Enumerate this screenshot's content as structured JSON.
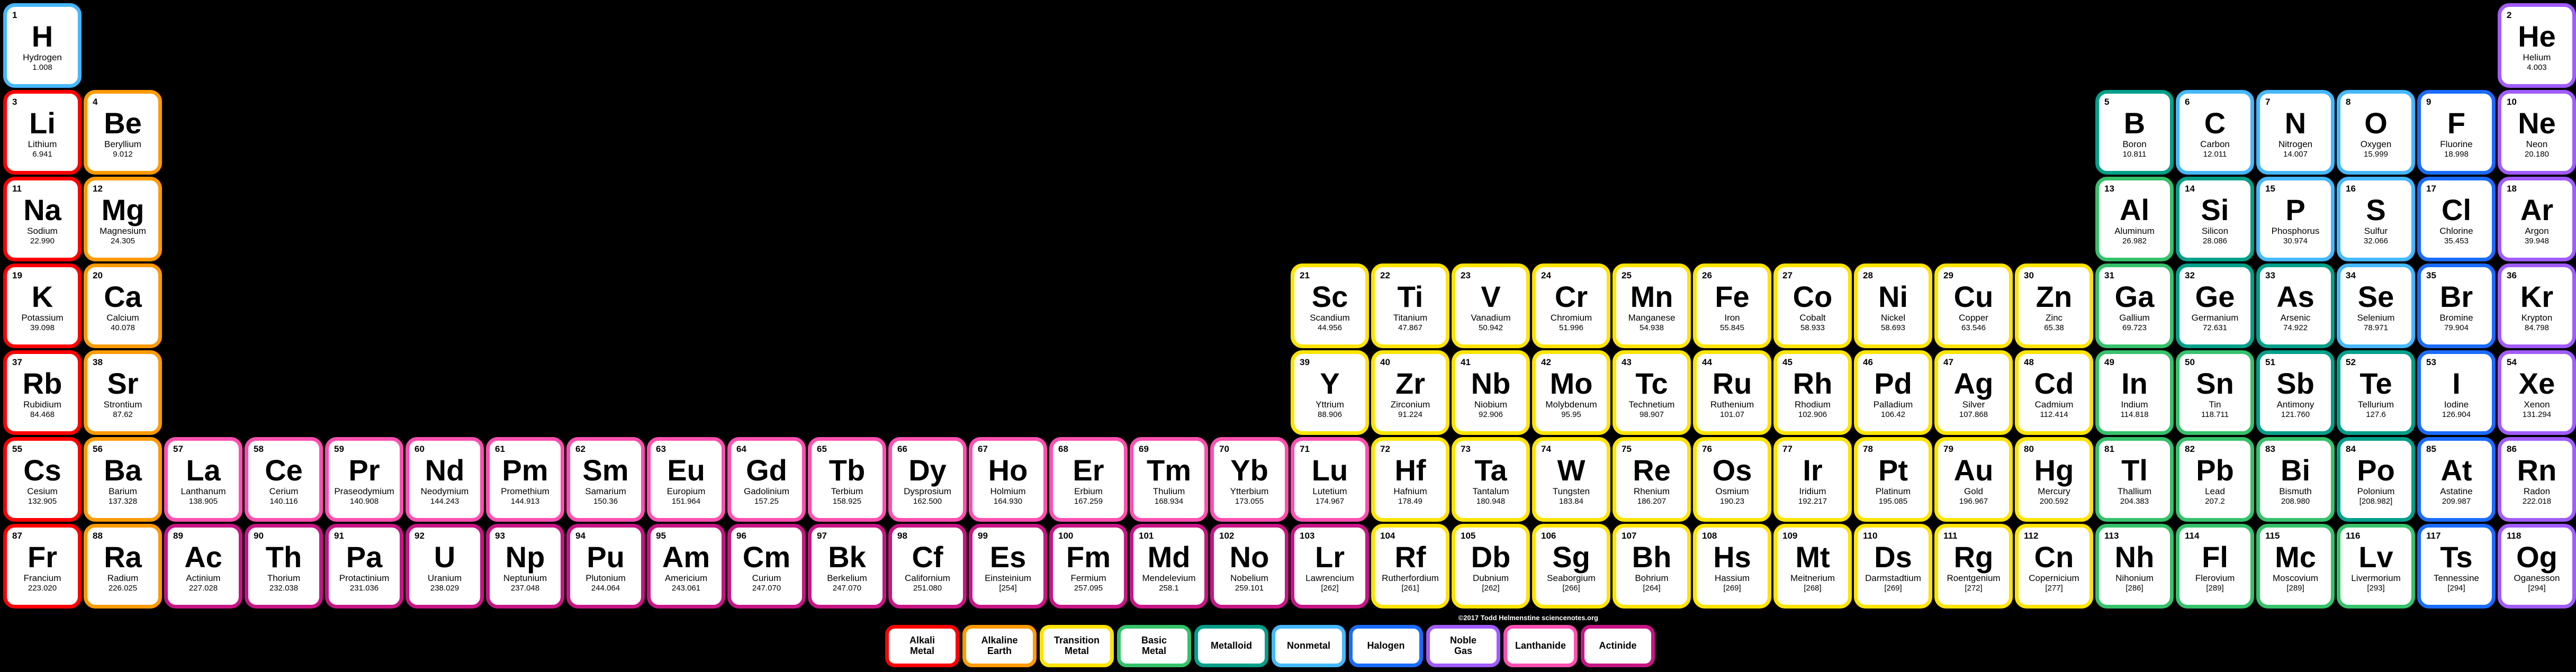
{
  "background_color": "#000000",
  "cell_bg": "#ffffff",
  "cell_text": "#000000",
  "credit": "©2017 Todd Helmenstine\nsciencenotes.org",
  "categories": {
    "alkali": {
      "label": "Alkali\nMetal",
      "color": "#ff0000"
    },
    "alkaline": {
      "label": "Alkaline\nEarth",
      "color": "#ff9a00"
    },
    "transition": {
      "label": "Transition\nMetal",
      "color": "#ffe400"
    },
    "basic": {
      "label": "Basic\nMetal",
      "color": "#35c26b"
    },
    "metalloid": {
      "label": "Metalloid",
      "color": "#00a08a"
    },
    "nonmetal": {
      "label": "Nonmetal",
      "color": "#45b8ff"
    },
    "halogen": {
      "label": "Halogen",
      "color": "#1a6bff"
    },
    "noble": {
      "label": "Noble\nGas",
      "color": "#a05cff"
    },
    "lanthanide": {
      "label": "Lanthanide",
      "color": "#ff4fb0"
    },
    "actinide": {
      "label": "Actinide",
      "color": "#c71585"
    }
  },
  "category_order": [
    "alkali",
    "alkaline",
    "transition",
    "basic",
    "metalloid",
    "nonmetal",
    "halogen",
    "noble",
    "lanthanide",
    "actinide"
  ],
  "elements": [
    {
      "n": 1,
      "s": "H",
      "nm": "Hydrogen",
      "m": "1.008",
      "c": "nonmetal",
      "r": 1,
      "col": 1
    },
    {
      "n": 2,
      "s": "He",
      "nm": "Helium",
      "m": "4.003",
      "c": "noble",
      "r": 1,
      "col": 32
    },
    {
      "n": 3,
      "s": "Li",
      "nm": "Lithium",
      "m": "6.941",
      "c": "alkali",
      "r": 2,
      "col": 1
    },
    {
      "n": 4,
      "s": "Be",
      "nm": "Beryllium",
      "m": "9.012",
      "c": "alkaline",
      "r": 2,
      "col": 2
    },
    {
      "n": 5,
      "s": "B",
      "nm": "Boron",
      "m": "10.811",
      "c": "metalloid",
      "r": 2,
      "col": 27
    },
    {
      "n": 6,
      "s": "C",
      "nm": "Carbon",
      "m": "12.011",
      "c": "nonmetal",
      "r": 2,
      "col": 28
    },
    {
      "n": 7,
      "s": "N",
      "nm": "Nitrogen",
      "m": "14.007",
      "c": "nonmetal",
      "r": 2,
      "col": 29
    },
    {
      "n": 8,
      "s": "O",
      "nm": "Oxygen",
      "m": "15.999",
      "c": "nonmetal",
      "r": 2,
      "col": 30
    },
    {
      "n": 9,
      "s": "F",
      "nm": "Fluorine",
      "m": "18.998",
      "c": "halogen",
      "r": 2,
      "col": 31
    },
    {
      "n": 10,
      "s": "Ne",
      "nm": "Neon",
      "m": "20.180",
      "c": "noble",
      "r": 2,
      "col": 32
    },
    {
      "n": 11,
      "s": "Na",
      "nm": "Sodium",
      "m": "22.990",
      "c": "alkali",
      "r": 3,
      "col": 1
    },
    {
      "n": 12,
      "s": "Mg",
      "nm": "Magnesium",
      "m": "24.305",
      "c": "alkaline",
      "r": 3,
      "col": 2
    },
    {
      "n": 13,
      "s": "Al",
      "nm": "Aluminum",
      "m": "26.982",
      "c": "basic",
      "r": 3,
      "col": 27
    },
    {
      "n": 14,
      "s": "Si",
      "nm": "Silicon",
      "m": "28.086",
      "c": "metalloid",
      "r": 3,
      "col": 28
    },
    {
      "n": 15,
      "s": "P",
      "nm": "Phosphorus",
      "m": "30.974",
      "c": "nonmetal",
      "r": 3,
      "col": 29
    },
    {
      "n": 16,
      "s": "S",
      "nm": "Sulfur",
      "m": "32.066",
      "c": "nonmetal",
      "r": 3,
      "col": 30
    },
    {
      "n": 17,
      "s": "Cl",
      "nm": "Chlorine",
      "m": "35.453",
      "c": "halogen",
      "r": 3,
      "col": 31
    },
    {
      "n": 18,
      "s": "Ar",
      "nm": "Argon",
      "m": "39.948",
      "c": "noble",
      "r": 3,
      "col": 32
    },
    {
      "n": 19,
      "s": "K",
      "nm": "Potassium",
      "m": "39.098",
      "c": "alkali",
      "r": 4,
      "col": 1
    },
    {
      "n": 20,
      "s": "Ca",
      "nm": "Calcium",
      "m": "40.078",
      "c": "alkaline",
      "r": 4,
      "col": 2
    },
    {
      "n": 21,
      "s": "Sc",
      "nm": "Scandium",
      "m": "44.956",
      "c": "transition",
      "r": 4,
      "col": 17
    },
    {
      "n": 22,
      "s": "Ti",
      "nm": "Titanium",
      "m": "47.867",
      "c": "transition",
      "r": 4,
      "col": 18
    },
    {
      "n": 23,
      "s": "V",
      "nm": "Vanadium",
      "m": "50.942",
      "c": "transition",
      "r": 4,
      "col": 19
    },
    {
      "n": 24,
      "s": "Cr",
      "nm": "Chromium",
      "m": "51.996",
      "c": "transition",
      "r": 4,
      "col": 20
    },
    {
      "n": 25,
      "s": "Mn",
      "nm": "Manganese",
      "m": "54.938",
      "c": "transition",
      "r": 4,
      "col": 21
    },
    {
      "n": 26,
      "s": "Fe",
      "nm": "Iron",
      "m": "55.845",
      "c": "transition",
      "r": 4,
      "col": 22
    },
    {
      "n": 27,
      "s": "Co",
      "nm": "Cobalt",
      "m": "58.933",
      "c": "transition",
      "r": 4,
      "col": 23
    },
    {
      "n": 28,
      "s": "Ni",
      "nm": "Nickel",
      "m": "58.693",
      "c": "transition",
      "r": 4,
      "col": 24
    },
    {
      "n": 29,
      "s": "Cu",
      "nm": "Copper",
      "m": "63.546",
      "c": "transition",
      "r": 4,
      "col": 25
    },
    {
      "n": 30,
      "s": "Zn",
      "nm": "Zinc",
      "m": "65.38",
      "c": "transition",
      "r": 4,
      "col": 26
    },
    {
      "n": 31,
      "s": "Ga",
      "nm": "Gallium",
      "m": "69.723",
      "c": "basic",
      "r": 4,
      "col": 27
    },
    {
      "n": 32,
      "s": "Ge",
      "nm": "Germanium",
      "m": "72.631",
      "c": "metalloid",
      "r": 4,
      "col": 28
    },
    {
      "n": 33,
      "s": "As",
      "nm": "Arsenic",
      "m": "74.922",
      "c": "metalloid",
      "r": 4,
      "col": 29
    },
    {
      "n": 34,
      "s": "Se",
      "nm": "Selenium",
      "m": "78.971",
      "c": "nonmetal",
      "r": 4,
      "col": 30
    },
    {
      "n": 35,
      "s": "Br",
      "nm": "Bromine",
      "m": "79.904",
      "c": "halogen",
      "r": 4,
      "col": 31
    },
    {
      "n": 36,
      "s": "Kr",
      "nm": "Krypton",
      "m": "84.798",
      "c": "noble",
      "r": 4,
      "col": 32
    },
    {
      "n": 37,
      "s": "Rb",
      "nm": "Rubidium",
      "m": "84.468",
      "c": "alkali",
      "r": 5,
      "col": 1
    },
    {
      "n": 38,
      "s": "Sr",
      "nm": "Strontium",
      "m": "87.62",
      "c": "alkaline",
      "r": 5,
      "col": 2
    },
    {
      "n": 39,
      "s": "Y",
      "nm": "Yttrium",
      "m": "88.906",
      "c": "transition",
      "r": 5,
      "col": 17
    },
    {
      "n": 40,
      "s": "Zr",
      "nm": "Zirconium",
      "m": "91.224",
      "c": "transition",
      "r": 5,
      "col": 18
    },
    {
      "n": 41,
      "s": "Nb",
      "nm": "Niobium",
      "m": "92.906",
      "c": "transition",
      "r": 5,
      "col": 19
    },
    {
      "n": 42,
      "s": "Mo",
      "nm": "Molybdenum",
      "m": "95.95",
      "c": "transition",
      "r": 5,
      "col": 20
    },
    {
      "n": 43,
      "s": "Tc",
      "nm": "Technetium",
      "m": "98.907",
      "c": "transition",
      "r": 5,
      "col": 21
    },
    {
      "n": 44,
      "s": "Ru",
      "nm": "Ruthenium",
      "m": "101.07",
      "c": "transition",
      "r": 5,
      "col": 22
    },
    {
      "n": 45,
      "s": "Rh",
      "nm": "Rhodium",
      "m": "102.906",
      "c": "transition",
      "r": 5,
      "col": 23
    },
    {
      "n": 46,
      "s": "Pd",
      "nm": "Palladium",
      "m": "106.42",
      "c": "transition",
      "r": 5,
      "col": 24
    },
    {
      "n": 47,
      "s": "Ag",
      "nm": "Silver",
      "m": "107.868",
      "c": "transition",
      "r": 5,
      "col": 25
    },
    {
      "n": 48,
      "s": "Cd",
      "nm": "Cadmium",
      "m": "112.414",
      "c": "transition",
      "r": 5,
      "col": 26
    },
    {
      "n": 49,
      "s": "In",
      "nm": "Indium",
      "m": "114.818",
      "c": "basic",
      "r": 5,
      "col": 27
    },
    {
      "n": 50,
      "s": "Sn",
      "nm": "Tin",
      "m": "118.711",
      "c": "basic",
      "r": 5,
      "col": 28
    },
    {
      "n": 51,
      "s": "Sb",
      "nm": "Antimony",
      "m": "121.760",
      "c": "metalloid",
      "r": 5,
      "col": 29
    },
    {
      "n": 52,
      "s": "Te",
      "nm": "Tellurium",
      "m": "127.6",
      "c": "metalloid",
      "r": 5,
      "col": 30
    },
    {
      "n": 53,
      "s": "I",
      "nm": "Iodine",
      "m": "126.904",
      "c": "halogen",
      "r": 5,
      "col": 31
    },
    {
      "n": 54,
      "s": "Xe",
      "nm": "Xenon",
      "m": "131.294",
      "c": "noble",
      "r": 5,
      "col": 32
    },
    {
      "n": 55,
      "s": "Cs",
      "nm": "Cesium",
      "m": "132.905",
      "c": "alkali",
      "r": 6,
      "col": 1
    },
    {
      "n": 56,
      "s": "Ba",
      "nm": "Barium",
      "m": "137.328",
      "c": "alkaline",
      "r": 6,
      "col": 2
    },
    {
      "n": 57,
      "s": "La",
      "nm": "Lanthanum",
      "m": "138.905",
      "c": "lanthanide",
      "r": 6,
      "col": 3
    },
    {
      "n": 58,
      "s": "Ce",
      "nm": "Cerium",
      "m": "140.116",
      "c": "lanthanide",
      "r": 6,
      "col": 4
    },
    {
      "n": 59,
      "s": "Pr",
      "nm": "Praseodymium",
      "m": "140.908",
      "c": "lanthanide",
      "r": 6,
      "col": 5
    },
    {
      "n": 60,
      "s": "Nd",
      "nm": "Neodymium",
      "m": "144.243",
      "c": "lanthanide",
      "r": 6,
      "col": 6
    },
    {
      "n": 61,
      "s": "Pm",
      "nm": "Promethium",
      "m": "144.913",
      "c": "lanthanide",
      "r": 6,
      "col": 7
    },
    {
      "n": 62,
      "s": "Sm",
      "nm": "Samarium",
      "m": "150.36",
      "c": "lanthanide",
      "r": 6,
      "col": 8
    },
    {
      "n": 63,
      "s": "Eu",
      "nm": "Europium",
      "m": "151.964",
      "c": "lanthanide",
      "r": 6,
      "col": 9
    },
    {
      "n": 64,
      "s": "Gd",
      "nm": "Gadolinium",
      "m": "157.25",
      "c": "lanthanide",
      "r": 6,
      "col": 10
    },
    {
      "n": 65,
      "s": "Tb",
      "nm": "Terbium",
      "m": "158.925",
      "c": "lanthanide",
      "r": 6,
      "col": 11
    },
    {
      "n": 66,
      "s": "Dy",
      "nm": "Dysprosium",
      "m": "162.500",
      "c": "lanthanide",
      "r": 6,
      "col": 12
    },
    {
      "n": 67,
      "s": "Ho",
      "nm": "Holmium",
      "m": "164.930",
      "c": "lanthanide",
      "r": 6,
      "col": 13
    },
    {
      "n": 68,
      "s": "Er",
      "nm": "Erbium",
      "m": "167.259",
      "c": "lanthanide",
      "r": 6,
      "col": 14
    },
    {
      "n": 69,
      "s": "Tm",
      "nm": "Thulium",
      "m": "168.934",
      "c": "lanthanide",
      "r": 6,
      "col": 15
    },
    {
      "n": 70,
      "s": "Yb",
      "nm": "Ytterbium",
      "m": "173.055",
      "c": "lanthanide",
      "r": 6,
      "col": 16
    },
    {
      "n": 71,
      "s": "Lu",
      "nm": "Lutetium",
      "m": "174.967",
      "c": "lanthanide",
      "r": 6,
      "col": 17
    },
    {
      "n": 72,
      "s": "Hf",
      "nm": "Hafnium",
      "m": "178.49",
      "c": "transition",
      "r": 6,
      "col": 18
    },
    {
      "n": 73,
      "s": "Ta",
      "nm": "Tantalum",
      "m": "180.948",
      "c": "transition",
      "r": 6,
      "col": 19
    },
    {
      "n": 74,
      "s": "W",
      "nm": "Tungsten",
      "m": "183.84",
      "c": "transition",
      "r": 6,
      "col": 20
    },
    {
      "n": 75,
      "s": "Re",
      "nm": "Rhenium",
      "m": "186.207",
      "c": "transition",
      "r": 6,
      "col": 21
    },
    {
      "n": 76,
      "s": "Os",
      "nm": "Osmium",
      "m": "190.23",
      "c": "transition",
      "r": 6,
      "col": 22
    },
    {
      "n": 77,
      "s": "Ir",
      "nm": "Iridium",
      "m": "192.217",
      "c": "transition",
      "r": 6,
      "col": 23
    },
    {
      "n": 78,
      "s": "Pt",
      "nm": "Platinum",
      "m": "195.085",
      "c": "transition",
      "r": 6,
      "col": 24
    },
    {
      "n": 79,
      "s": "Au",
      "nm": "Gold",
      "m": "196.967",
      "c": "transition",
      "r": 6,
      "col": 25
    },
    {
      "n": 80,
      "s": "Hg",
      "nm": "Mercury",
      "m": "200.592",
      "c": "transition",
      "r": 6,
      "col": 26
    },
    {
      "n": 81,
      "s": "Tl",
      "nm": "Thallium",
      "m": "204.383",
      "c": "basic",
      "r": 6,
      "col": 27
    },
    {
      "n": 82,
      "s": "Pb",
      "nm": "Lead",
      "m": "207.2",
      "c": "basic",
      "r": 6,
      "col": 28
    },
    {
      "n": 83,
      "s": "Bi",
      "nm": "Bismuth",
      "m": "208.980",
      "c": "basic",
      "r": 6,
      "col": 29
    },
    {
      "n": 84,
      "s": "Po",
      "nm": "Polonium",
      "m": "[208.982]",
      "c": "metalloid",
      "r": 6,
      "col": 30
    },
    {
      "n": 85,
      "s": "At",
      "nm": "Astatine",
      "m": "209.987",
      "c": "halogen",
      "r": 6,
      "col": 31
    },
    {
      "n": 86,
      "s": "Rn",
      "nm": "Radon",
      "m": "222.018",
      "c": "noble",
      "r": 6,
      "col": 32
    },
    {
      "n": 87,
      "s": "Fr",
      "nm": "Francium",
      "m": "223.020",
      "c": "alkali",
      "r": 7,
      "col": 1
    },
    {
      "n": 88,
      "s": "Ra",
      "nm": "Radium",
      "m": "226.025",
      "c": "alkaline",
      "r": 7,
      "col": 2
    },
    {
      "n": 89,
      "s": "Ac",
      "nm": "Actinium",
      "m": "227.028",
      "c": "actinide",
      "r": 7,
      "col": 3
    },
    {
      "n": 90,
      "s": "Th",
      "nm": "Thorium",
      "m": "232.038",
      "c": "actinide",
      "r": 7,
      "col": 4
    },
    {
      "n": 91,
      "s": "Pa",
      "nm": "Protactinium",
      "m": "231.036",
      "c": "actinide",
      "r": 7,
      "col": 5
    },
    {
      "n": 92,
      "s": "U",
      "nm": "Uranium",
      "m": "238.029",
      "c": "actinide",
      "r": 7,
      "col": 6
    },
    {
      "n": 93,
      "s": "Np",
      "nm": "Neptunium",
      "m": "237.048",
      "c": "actinide",
      "r": 7,
      "col": 7
    },
    {
      "n": 94,
      "s": "Pu",
      "nm": "Plutonium",
      "m": "244.064",
      "c": "actinide",
      "r": 7,
      "col": 8
    },
    {
      "n": 95,
      "s": "Am",
      "nm": "Americium",
      "m": "243.061",
      "c": "actinide",
      "r": 7,
      "col": 9
    },
    {
      "n": 96,
      "s": "Cm",
      "nm": "Curium",
      "m": "247.070",
      "c": "actinide",
      "r": 7,
      "col": 10
    },
    {
      "n": 97,
      "s": "Bk",
      "nm": "Berkelium",
      "m": "247.070",
      "c": "actinide",
      "r": 7,
      "col": 11
    },
    {
      "n": 98,
      "s": "Cf",
      "nm": "Californium",
      "m": "251.080",
      "c": "actinide",
      "r": 7,
      "col": 12
    },
    {
      "n": 99,
      "s": "Es",
      "nm": "Einsteinium",
      "m": "[254]",
      "c": "actinide",
      "r": 7,
      "col": 13
    },
    {
      "n": 100,
      "s": "Fm",
      "nm": "Fermium",
      "m": "257.095",
      "c": "actinide",
      "r": 7,
      "col": 14
    },
    {
      "n": 101,
      "s": "Md",
      "nm": "Mendelevium",
      "m": "258.1",
      "c": "actinide",
      "r": 7,
      "col": 15
    },
    {
      "n": 102,
      "s": "No",
      "nm": "Nobelium",
      "m": "259.101",
      "c": "actinide",
      "r": 7,
      "col": 16
    },
    {
      "n": 103,
      "s": "Lr",
      "nm": "Lawrencium",
      "m": "[262]",
      "c": "actinide",
      "r": 7,
      "col": 17
    },
    {
      "n": 104,
      "s": "Rf",
      "nm": "Rutherfordium",
      "m": "[261]",
      "c": "transition",
      "r": 7,
      "col": 18
    },
    {
      "n": 105,
      "s": "Db",
      "nm": "Dubnium",
      "m": "[262]",
      "c": "transition",
      "r": 7,
      "col": 19
    },
    {
      "n": 106,
      "s": "Sg",
      "nm": "Seaborgium",
      "m": "[266]",
      "c": "transition",
      "r": 7,
      "col": 20
    },
    {
      "n": 107,
      "s": "Bh",
      "nm": "Bohrium",
      "m": "[264]",
      "c": "transition",
      "r": 7,
      "col": 21
    },
    {
      "n": 108,
      "s": "Hs",
      "nm": "Hassium",
      "m": "[269]",
      "c": "transition",
      "r": 7,
      "col": 22
    },
    {
      "n": 109,
      "s": "Mt",
      "nm": "Meitnerium",
      "m": "[268]",
      "c": "transition",
      "r": 7,
      "col": 23
    },
    {
      "n": 110,
      "s": "Ds",
      "nm": "Darmstadtium",
      "m": "[269]",
      "c": "transition",
      "r": 7,
      "col": 24
    },
    {
      "n": 111,
      "s": "Rg",
      "nm": "Roentgenium",
      "m": "[272]",
      "c": "transition",
      "r": 7,
      "col": 25
    },
    {
      "n": 112,
      "s": "Cn",
      "nm": "Copernicium",
      "m": "[277]",
      "c": "transition",
      "r": 7,
      "col": 26
    },
    {
      "n": 113,
      "s": "Nh",
      "nm": "Nihonium",
      "m": "[286]",
      "c": "basic",
      "r": 7,
      "col": 27
    },
    {
      "n": 114,
      "s": "Fl",
      "nm": "Flerovium",
      "m": "[289]",
      "c": "basic",
      "r": 7,
      "col": 28
    },
    {
      "n": 115,
      "s": "Mc",
      "nm": "Moscovium",
      "m": "[289]",
      "c": "basic",
      "r": 7,
      "col": 29
    },
    {
      "n": 116,
      "s": "Lv",
      "nm": "Livermorium",
      "m": "[293]",
      "c": "basic",
      "r": 7,
      "col": 30
    },
    {
      "n": 117,
      "s": "Ts",
      "nm": "Tennessine",
      "m": "[294]",
      "c": "halogen",
      "r": 7,
      "col": 31
    },
    {
      "n": 118,
      "s": "Og",
      "nm": "Oganesson",
      "m": "[294]",
      "c": "noble",
      "r": 7,
      "col": 32
    }
  ]
}
